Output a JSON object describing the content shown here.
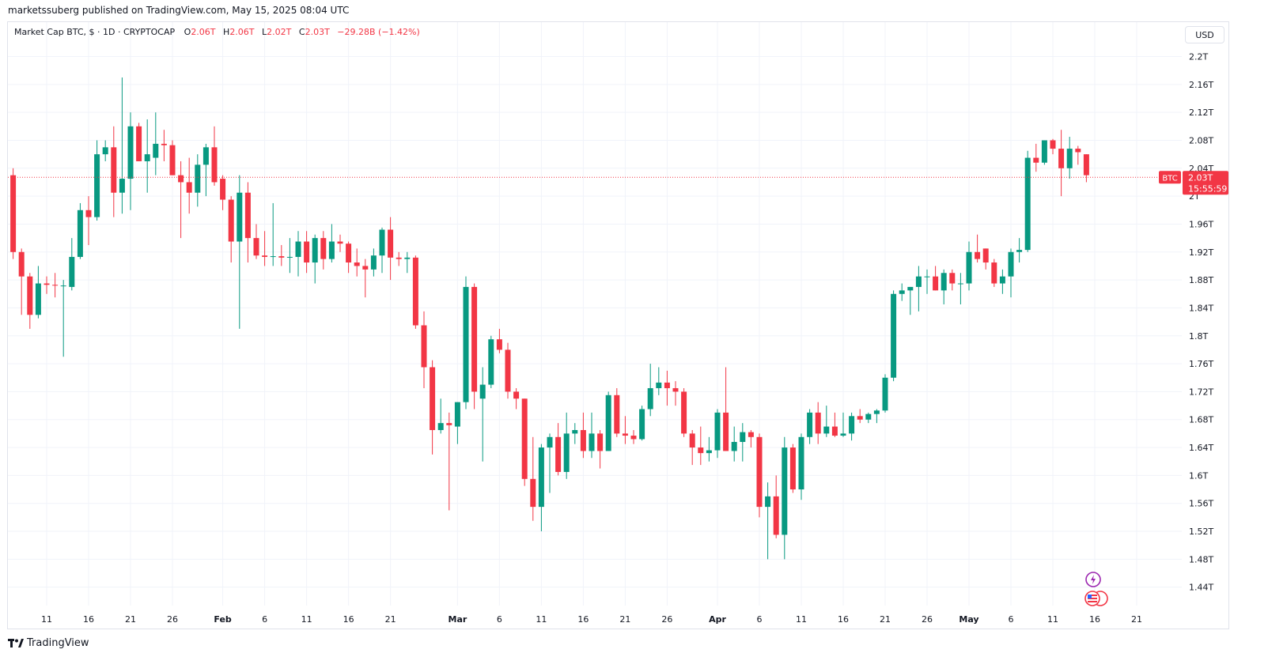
{
  "header": {
    "published_by": "marketssuberg published on TradingView.com, May 15, 2025 08:04 UTC"
  },
  "legend": {
    "symbol": "Market Cap BTC, $ · 1D · CRYPTOCAP",
    "o_label": "O",
    "o_value": "2.06T",
    "h_label": "H",
    "h_value": "2.06T",
    "l_label": "L",
    "l_value": "2.02T",
    "c_label": "C",
    "c_value": "2.03T",
    "change": "−29.28B (−1.42%)"
  },
  "price_scale": {
    "currency": "USD",
    "last_price_tag": "BTC",
    "last_price": "2.03T",
    "countdown": "15:55:59"
  },
  "footer": {
    "brand": "TradingView"
  },
  "colors": {
    "up": "#089981",
    "down": "#f23645",
    "grid": "#f0f3fa",
    "text": "#131722"
  },
  "chart_data": {
    "type": "candlestick",
    "x_tick_labels": [
      {
        "label": "11",
        "day": 11
      },
      {
        "label": "16",
        "day": 16
      },
      {
        "label": "21",
        "day": 21
      },
      {
        "label": "26",
        "day": 26
      },
      {
        "label": "Feb",
        "day": 32
      },
      {
        "label": "6",
        "day": 37
      },
      {
        "label": "11",
        "day": 42
      },
      {
        "label": "16",
        "day": 47
      },
      {
        "label": "21",
        "day": 52
      },
      {
        "label": "Mar",
        "day": 60
      },
      {
        "label": "6",
        "day": 65
      },
      {
        "label": "11",
        "day": 70
      },
      {
        "label": "16",
        "day": 75
      },
      {
        "label": "21",
        "day": 80
      },
      {
        "label": "26",
        "day": 85
      },
      {
        "label": "Apr",
        "day": 91
      },
      {
        "label": "6",
        "day": 96
      },
      {
        "label": "11",
        "day": 101
      },
      {
        "label": "16",
        "day": 106
      },
      {
        "label": "21",
        "day": 111
      },
      {
        "label": "26",
        "day": 116
      },
      {
        "label": "May",
        "day": 121
      },
      {
        "label": "6",
        "day": 126
      },
      {
        "label": "11",
        "day": 131
      },
      {
        "label": "16",
        "day": 136
      },
      {
        "label": "21",
        "day": 141
      }
    ],
    "y_ticks": [
      {
        "label": "2.2T",
        "value": 2.2
      },
      {
        "label": "2.16T",
        "value": 2.16
      },
      {
        "label": "2.12T",
        "value": 2.12
      },
      {
        "label": "2.08T",
        "value": 2.08
      },
      {
        "label": "2.04T",
        "value": 2.04
      },
      {
        "label": "2T",
        "value": 2.0
      },
      {
        "label": "1.96T",
        "value": 1.96
      },
      {
        "label": "1.92T",
        "value": 1.92
      },
      {
        "label": "1.88T",
        "value": 1.88
      },
      {
        "label": "1.84T",
        "value": 1.84
      },
      {
        "label": "1.8T",
        "value": 1.8
      },
      {
        "label": "1.76T",
        "value": 1.76
      },
      {
        "label": "1.72T",
        "value": 1.72
      },
      {
        "label": "1.68T",
        "value": 1.68
      },
      {
        "label": "1.64T",
        "value": 1.64
      },
      {
        "label": "1.6T",
        "value": 1.6
      },
      {
        "label": "1.56T",
        "value": 1.56
      },
      {
        "label": "1.52T",
        "value": 1.52
      },
      {
        "label": "1.48T",
        "value": 1.48
      },
      {
        "label": "1.44T",
        "value": 1.44
      }
    ],
    "y_unit": "T USD",
    "last_price": 2.027,
    "candles": [
      {
        "d": 7,
        "o": 2.03,
        "h": 2.04,
        "l": 1.91,
        "c": 1.92
      },
      {
        "d": 8,
        "o": 1.92,
        "h": 1.925,
        "l": 1.83,
        "c": 1.885
      },
      {
        "d": 9,
        "o": 1.885,
        "h": 1.89,
        "l": 1.81,
        "c": 1.83
      },
      {
        "d": 10,
        "o": 1.83,
        "h": 1.9,
        "l": 1.825,
        "c": 1.875
      },
      {
        "d": 11,
        "o": 1.875,
        "h": 1.885,
        "l": 1.86,
        "c": 1.873
      },
      {
        "d": 12,
        "o": 1.873,
        "h": 1.89,
        "l": 1.855,
        "c": 1.872
      },
      {
        "d": 13,
        "o": 1.872,
        "h": 1.88,
        "l": 1.77,
        "c": 1.872
      },
      {
        "d": 14,
        "o": 1.87,
        "h": 1.94,
        "l": 1.865,
        "c": 1.913
      },
      {
        "d": 15,
        "o": 1.913,
        "h": 1.99,
        "l": 1.91,
        "c": 1.98
      },
      {
        "d": 16,
        "o": 1.98,
        "h": 2.0,
        "l": 1.93,
        "c": 1.97
      },
      {
        "d": 17,
        "o": 1.97,
        "h": 2.08,
        "l": 1.965,
        "c": 2.06
      },
      {
        "d": 18,
        "o": 2.06,
        "h": 2.08,
        "l": 2.05,
        "c": 2.07
      },
      {
        "d": 19,
        "o": 2.07,
        "h": 2.1,
        "l": 1.97,
        "c": 2.005
      },
      {
        "d": 20,
        "o": 2.005,
        "h": 2.17,
        "l": 1.975,
        "c": 2.025
      },
      {
        "d": 21,
        "o": 2.025,
        "h": 2.12,
        "l": 1.98,
        "c": 2.1
      },
      {
        "d": 22,
        "o": 2.1,
        "h": 2.105,
        "l": 2.05,
        "c": 2.05
      },
      {
        "d": 23,
        "o": 2.05,
        "h": 2.11,
        "l": 2.005,
        "c": 2.06
      },
      {
        "d": 24,
        "o": 2.055,
        "h": 2.12,
        "l": 2.03,
        "c": 2.075
      },
      {
        "d": 25,
        "o": 2.075,
        "h": 2.095,
        "l": 2.05,
        "c": 2.073
      },
      {
        "d": 26,
        "o": 2.073,
        "h": 2.08,
        "l": 2.03,
        "c": 2.03
      },
      {
        "d": 27,
        "o": 2.03,
        "h": 2.05,
        "l": 1.94,
        "c": 2.02
      },
      {
        "d": 28,
        "o": 2.02,
        "h": 2.055,
        "l": 1.975,
        "c": 2.005
      },
      {
        "d": 29,
        "o": 2.005,
        "h": 2.06,
        "l": 1.985,
        "c": 2.045
      },
      {
        "d": 30,
        "o": 2.045,
        "h": 2.075,
        "l": 2.0,
        "c": 2.07
      },
      {
        "d": 31,
        "o": 2.07,
        "h": 2.1,
        "l": 2.015,
        "c": 2.02
      },
      {
        "d": 32,
        "o": 2.025,
        "h": 2.03,
        "l": 1.98,
        "c": 1.995
      },
      {
        "d": 33,
        "o": 1.995,
        "h": 2.0,
        "l": 1.905,
        "c": 1.935
      },
      {
        "d": 34,
        "o": 1.935,
        "h": 2.03,
        "l": 1.81,
        "c": 2.005
      },
      {
        "d": 35,
        "o": 2.005,
        "h": 2.02,
        "l": 1.905,
        "c": 1.94
      },
      {
        "d": 36,
        "o": 1.94,
        "h": 1.96,
        "l": 1.91,
        "c": 1.915
      },
      {
        "d": 37,
        "o": 1.915,
        "h": 1.95,
        "l": 1.9,
        "c": 1.913
      },
      {
        "d": 38,
        "o": 1.913,
        "h": 1.99,
        "l": 1.9,
        "c": 1.914
      },
      {
        "d": 39,
        "o": 1.914,
        "h": 1.93,
        "l": 1.9,
        "c": 1.912
      },
      {
        "d": 40,
        "o": 1.912,
        "h": 1.94,
        "l": 1.89,
        "c": 1.913
      },
      {
        "d": 41,
        "o": 1.913,
        "h": 1.95,
        "l": 1.885,
        "c": 1.935
      },
      {
        "d": 42,
        "o": 1.935,
        "h": 1.95,
        "l": 1.89,
        "c": 1.905
      },
      {
        "d": 43,
        "o": 1.905,
        "h": 1.945,
        "l": 1.875,
        "c": 1.94
      },
      {
        "d": 44,
        "o": 1.94,
        "h": 1.95,
        "l": 1.895,
        "c": 1.91
      },
      {
        "d": 45,
        "o": 1.91,
        "h": 1.96,
        "l": 1.905,
        "c": 1.935
      },
      {
        "d": 46,
        "o": 1.935,
        "h": 1.945,
        "l": 1.92,
        "c": 1.932
      },
      {
        "d": 47,
        "o": 1.932,
        "h": 1.935,
        "l": 1.89,
        "c": 1.905
      },
      {
        "d": 48,
        "o": 1.905,
        "h": 1.925,
        "l": 1.885,
        "c": 1.9
      },
      {
        "d": 49,
        "o": 1.9,
        "h": 1.91,
        "l": 1.855,
        "c": 1.895
      },
      {
        "d": 50,
        "o": 1.895,
        "h": 1.925,
        "l": 1.885,
        "c": 1.915
      },
      {
        "d": 51,
        "o": 1.915,
        "h": 1.955,
        "l": 1.89,
        "c": 1.952
      },
      {
        "d": 52,
        "o": 1.952,
        "h": 1.97,
        "l": 1.88,
        "c": 1.912
      },
      {
        "d": 53,
        "o": 1.912,
        "h": 1.92,
        "l": 1.9,
        "c": 1.91
      },
      {
        "d": 54,
        "o": 1.91,
        "h": 1.92,
        "l": 1.89,
        "c": 1.912
      },
      {
        "d": 55,
        "o": 1.912,
        "h": 1.915,
        "l": 1.81,
        "c": 1.815
      },
      {
        "d": 56,
        "o": 1.815,
        "h": 1.835,
        "l": 1.725,
        "c": 1.755
      },
      {
        "d": 57,
        "o": 1.755,
        "h": 1.765,
        "l": 1.63,
        "c": 1.665
      },
      {
        "d": 58,
        "o": 1.665,
        "h": 1.71,
        "l": 1.66,
        "c": 1.675
      },
      {
        "d": 59,
        "o": 1.675,
        "h": 1.69,
        "l": 1.55,
        "c": 1.672
      },
      {
        "d": 60,
        "o": 1.67,
        "h": 1.705,
        "l": 1.645,
        "c": 1.705
      },
      {
        "d": 61,
        "o": 1.705,
        "h": 1.885,
        "l": 1.695,
        "c": 1.87
      },
      {
        "d": 62,
        "o": 1.87,
        "h": 1.875,
        "l": 1.695,
        "c": 1.72
      },
      {
        "d": 63,
        "o": 1.71,
        "h": 1.755,
        "l": 1.62,
        "c": 1.73
      },
      {
        "d": 64,
        "o": 1.73,
        "h": 1.8,
        "l": 1.725,
        "c": 1.795
      },
      {
        "d": 65,
        "o": 1.795,
        "h": 1.81,
        "l": 1.775,
        "c": 1.78
      },
      {
        "d": 66,
        "o": 1.78,
        "h": 1.79,
        "l": 1.71,
        "c": 1.72
      },
      {
        "d": 67,
        "o": 1.72,
        "h": 1.725,
        "l": 1.695,
        "c": 1.71
      },
      {
        "d": 68,
        "o": 1.71,
        "h": 1.71,
        "l": 1.585,
        "c": 1.595
      },
      {
        "d": 69,
        "o": 1.595,
        "h": 1.655,
        "l": 1.535,
        "c": 1.555
      },
      {
        "d": 70,
        "o": 1.555,
        "h": 1.645,
        "l": 1.52,
        "c": 1.64
      },
      {
        "d": 71,
        "o": 1.64,
        "h": 1.66,
        "l": 1.575,
        "c": 1.655
      },
      {
        "d": 72,
        "o": 1.655,
        "h": 1.675,
        "l": 1.6,
        "c": 1.605
      },
      {
        "d": 73,
        "o": 1.605,
        "h": 1.69,
        "l": 1.595,
        "c": 1.66
      },
      {
        "d": 74,
        "o": 1.66,
        "h": 1.675,
        "l": 1.645,
        "c": 1.665
      },
      {
        "d": 75,
        "o": 1.665,
        "h": 1.69,
        "l": 1.625,
        "c": 1.635
      },
      {
        "d": 76,
        "o": 1.635,
        "h": 1.69,
        "l": 1.625,
        "c": 1.66
      },
      {
        "d": 77,
        "o": 1.66,
        "h": 1.665,
        "l": 1.61,
        "c": 1.635
      },
      {
        "d": 78,
        "o": 1.635,
        "h": 1.72,
        "l": 1.635,
        "c": 1.715
      },
      {
        "d": 79,
        "o": 1.715,
        "h": 1.725,
        "l": 1.655,
        "c": 1.66
      },
      {
        "d": 80,
        "o": 1.66,
        "h": 1.685,
        "l": 1.645,
        "c": 1.657
      },
      {
        "d": 81,
        "o": 1.657,
        "h": 1.665,
        "l": 1.645,
        "c": 1.652
      },
      {
        "d": 82,
        "o": 1.652,
        "h": 1.7,
        "l": 1.65,
        "c": 1.695
      },
      {
        "d": 83,
        "o": 1.695,
        "h": 1.76,
        "l": 1.685,
        "c": 1.725
      },
      {
        "d": 84,
        "o": 1.725,
        "h": 1.755,
        "l": 1.715,
        "c": 1.733
      },
      {
        "d": 85,
        "o": 1.733,
        "h": 1.75,
        "l": 1.7,
        "c": 1.725
      },
      {
        "d": 86,
        "o": 1.725,
        "h": 1.735,
        "l": 1.7,
        "c": 1.72
      },
      {
        "d": 87,
        "o": 1.72,
        "h": 1.725,
        "l": 1.655,
        "c": 1.66
      },
      {
        "d": 88,
        "o": 1.66,
        "h": 1.665,
        "l": 1.615,
        "c": 1.64
      },
      {
        "d": 89,
        "o": 1.64,
        "h": 1.67,
        "l": 1.615,
        "c": 1.632
      },
      {
        "d": 90,
        "o": 1.632,
        "h": 1.655,
        "l": 1.62,
        "c": 1.636
      },
      {
        "d": 91,
        "o": 1.636,
        "h": 1.695,
        "l": 1.625,
        "c": 1.69
      },
      {
        "d": 92,
        "o": 1.69,
        "h": 1.755,
        "l": 1.635,
        "c": 1.635
      },
      {
        "d": 93,
        "o": 1.635,
        "h": 1.67,
        "l": 1.62,
        "c": 1.648
      },
      {
        "d": 94,
        "o": 1.648,
        "h": 1.675,
        "l": 1.62,
        "c": 1.662
      },
      {
        "d": 95,
        "o": 1.662,
        "h": 1.665,
        "l": 1.64,
        "c": 1.655
      },
      {
        "d": 96,
        "o": 1.655,
        "h": 1.66,
        "l": 1.54,
        "c": 1.555
      },
      {
        "d": 97,
        "o": 1.555,
        "h": 1.59,
        "l": 1.48,
        "c": 1.57
      },
      {
        "d": 98,
        "o": 1.57,
        "h": 1.6,
        "l": 1.51,
        "c": 1.515
      },
      {
        "d": 99,
        "o": 1.515,
        "h": 1.655,
        "l": 1.48,
        "c": 1.64
      },
      {
        "d": 100,
        "o": 1.64,
        "h": 1.645,
        "l": 1.575,
        "c": 1.58
      },
      {
        "d": 101,
        "o": 1.58,
        "h": 1.66,
        "l": 1.565,
        "c": 1.655
      },
      {
        "d": 102,
        "o": 1.655,
        "h": 1.695,
        "l": 1.645,
        "c": 1.69
      },
      {
        "d": 103,
        "o": 1.69,
        "h": 1.705,
        "l": 1.645,
        "c": 1.66
      },
      {
        "d": 104,
        "o": 1.66,
        "h": 1.7,
        "l": 1.655,
        "c": 1.67
      },
      {
        "d": 105,
        "o": 1.67,
        "h": 1.69,
        "l": 1.655,
        "c": 1.657
      },
      {
        "d": 106,
        "o": 1.657,
        "h": 1.69,
        "l": 1.655,
        "c": 1.66
      },
      {
        "d": 107,
        "o": 1.66,
        "h": 1.69,
        "l": 1.65,
        "c": 1.685
      },
      {
        "d": 108,
        "o": 1.685,
        "h": 1.695,
        "l": 1.675,
        "c": 1.68
      },
      {
        "d": 109,
        "o": 1.68,
        "h": 1.69,
        "l": 1.675,
        "c": 1.688
      },
      {
        "d": 110,
        "o": 1.688,
        "h": 1.695,
        "l": 1.675,
        "c": 1.693
      },
      {
        "d": 111,
        "o": 1.693,
        "h": 1.745,
        "l": 1.69,
        "c": 1.74
      },
      {
        "d": 112,
        "o": 1.74,
        "h": 1.865,
        "l": 1.735,
        "c": 1.86
      },
      {
        "d": 113,
        "o": 1.86,
        "h": 1.875,
        "l": 1.85,
        "c": 1.865
      },
      {
        "d": 114,
        "o": 1.865,
        "h": 1.87,
        "l": 1.83,
        "c": 1.87
      },
      {
        "d": 115,
        "o": 1.87,
        "h": 1.9,
        "l": 1.835,
        "c": 1.885
      },
      {
        "d": 116,
        "o": 1.885,
        "h": 1.895,
        "l": 1.86,
        "c": 1.885
      },
      {
        "d": 117,
        "o": 1.885,
        "h": 1.9,
        "l": 1.865,
        "c": 1.865
      },
      {
        "d": 118,
        "o": 1.865,
        "h": 1.895,
        "l": 1.845,
        "c": 1.89
      },
      {
        "d": 119,
        "o": 1.89,
        "h": 1.895,
        "l": 1.865,
        "c": 1.875
      },
      {
        "d": 120,
        "o": 1.875,
        "h": 1.89,
        "l": 1.845,
        "c": 1.875
      },
      {
        "d": 121,
        "o": 1.875,
        "h": 1.935,
        "l": 1.865,
        "c": 1.92
      },
      {
        "d": 122,
        "o": 1.92,
        "h": 1.945,
        "l": 1.905,
        "c": 1.91
      },
      {
        "d": 123,
        "o": 1.925,
        "h": 1.925,
        "l": 1.895,
        "c": 1.905
      },
      {
        "d": 124,
        "o": 1.905,
        "h": 1.91,
        "l": 1.87,
        "c": 1.875
      },
      {
        "d": 125,
        "o": 1.875,
        "h": 1.895,
        "l": 1.86,
        "c": 1.885
      },
      {
        "d": 126,
        "o": 1.885,
        "h": 1.925,
        "l": 1.855,
        "c": 1.92
      },
      {
        "d": 127,
        "o": 1.92,
        "h": 1.94,
        "l": 1.905,
        "c": 1.923
      },
      {
        "d": 128,
        "o": 1.923,
        "h": 2.065,
        "l": 1.92,
        "c": 2.055
      },
      {
        "d": 129,
        "o": 2.055,
        "h": 2.075,
        "l": 2.035,
        "c": 2.048
      },
      {
        "d": 130,
        "o": 2.048,
        "h": 2.08,
        "l": 2.045,
        "c": 2.08
      },
      {
        "d": 131,
        "o": 2.08,
        "h": 2.082,
        "l": 2.06,
        "c": 2.068
      },
      {
        "d": 132,
        "o": 2.068,
        "h": 2.095,
        "l": 2.0,
        "c": 2.04
      },
      {
        "d": 133,
        "o": 2.04,
        "h": 2.085,
        "l": 2.025,
        "c": 2.068
      },
      {
        "d": 134,
        "o": 2.068,
        "h": 2.072,
        "l": 2.045,
        "c": 2.063
      },
      {
        "d": 135,
        "o": 2.06,
        "h": 2.06,
        "l": 2.02,
        "c": 2.03
      }
    ]
  }
}
